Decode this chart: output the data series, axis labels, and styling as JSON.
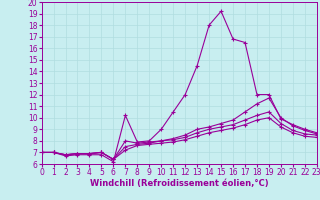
{
  "title": "",
  "xlabel": "Windchill (Refroidissement éolien,°C)",
  "xlim": [
    0,
    23
  ],
  "ylim": [
    6,
    20
  ],
  "xticks": [
    0,
    1,
    2,
    3,
    4,
    5,
    6,
    7,
    8,
    9,
    10,
    11,
    12,
    13,
    14,
    15,
    16,
    17,
    18,
    19,
    20,
    21,
    22,
    23
  ],
  "yticks": [
    6,
    7,
    8,
    9,
    10,
    11,
    12,
    13,
    14,
    15,
    16,
    17,
    18,
    19,
    20
  ],
  "background_color": "#c8eef0",
  "line_color": "#990099",
  "grid_color": "#b0dde0",
  "series": [
    {
      "x": [
        0,
        1,
        2,
        3,
        4,
        5,
        6,
        7,
        8,
        9,
        10,
        11,
        12,
        13,
        14,
        15,
        16,
        17,
        18,
        19,
        20,
        21,
        22,
        23
      ],
      "y": [
        7.0,
        7.0,
        6.7,
        6.8,
        6.8,
        6.8,
        6.2,
        10.2,
        7.9,
        8.0,
        9.0,
        10.5,
        12.0,
        14.5,
        18.0,
        19.2,
        16.8,
        16.5,
        12.0,
        12.0,
        9.9,
        9.4,
        9.0,
        8.7
      ]
    },
    {
      "x": [
        0,
        1,
        2,
        3,
        4,
        5,
        6,
        7,
        8,
        9,
        10,
        11,
        12,
        13,
        14,
        15,
        16,
        17,
        18,
        19,
        20,
        21,
        22,
        23
      ],
      "y": [
        7.0,
        7.0,
        6.8,
        6.9,
        6.9,
        7.0,
        6.4,
        8.0,
        7.8,
        7.9,
        8.0,
        8.2,
        8.5,
        9.0,
        9.2,
        9.5,
        9.8,
        10.5,
        11.2,
        11.7,
        10.0,
        9.3,
        8.9,
        8.6
      ]
    },
    {
      "x": [
        0,
        1,
        2,
        3,
        4,
        5,
        6,
        7,
        8,
        9,
        10,
        11,
        12,
        13,
        14,
        15,
        16,
        17,
        18,
        19,
        20,
        21,
        22,
        23
      ],
      "y": [
        7.0,
        7.0,
        6.8,
        6.9,
        6.9,
        7.0,
        6.4,
        7.5,
        7.7,
        7.8,
        8.0,
        8.1,
        8.3,
        8.7,
        9.0,
        9.2,
        9.4,
        9.8,
        10.2,
        10.5,
        9.5,
        8.9,
        8.6,
        8.5
      ]
    },
    {
      "x": [
        0,
        1,
        2,
        3,
        4,
        5,
        6,
        7,
        8,
        9,
        10,
        11,
        12,
        13,
        14,
        15,
        16,
        17,
        18,
        19,
        20,
        21,
        22,
        23
      ],
      "y": [
        7.0,
        7.0,
        6.8,
        6.9,
        6.9,
        7.0,
        6.4,
        7.2,
        7.6,
        7.7,
        7.8,
        7.9,
        8.1,
        8.4,
        8.7,
        8.9,
        9.1,
        9.4,
        9.8,
        10.0,
        9.2,
        8.7,
        8.4,
        8.3
      ]
    }
  ],
  "marker": "+",
  "markersize": 3,
  "linewidth": 0.8,
  "axis_fontsize": 6,
  "tick_fontsize": 5.5
}
